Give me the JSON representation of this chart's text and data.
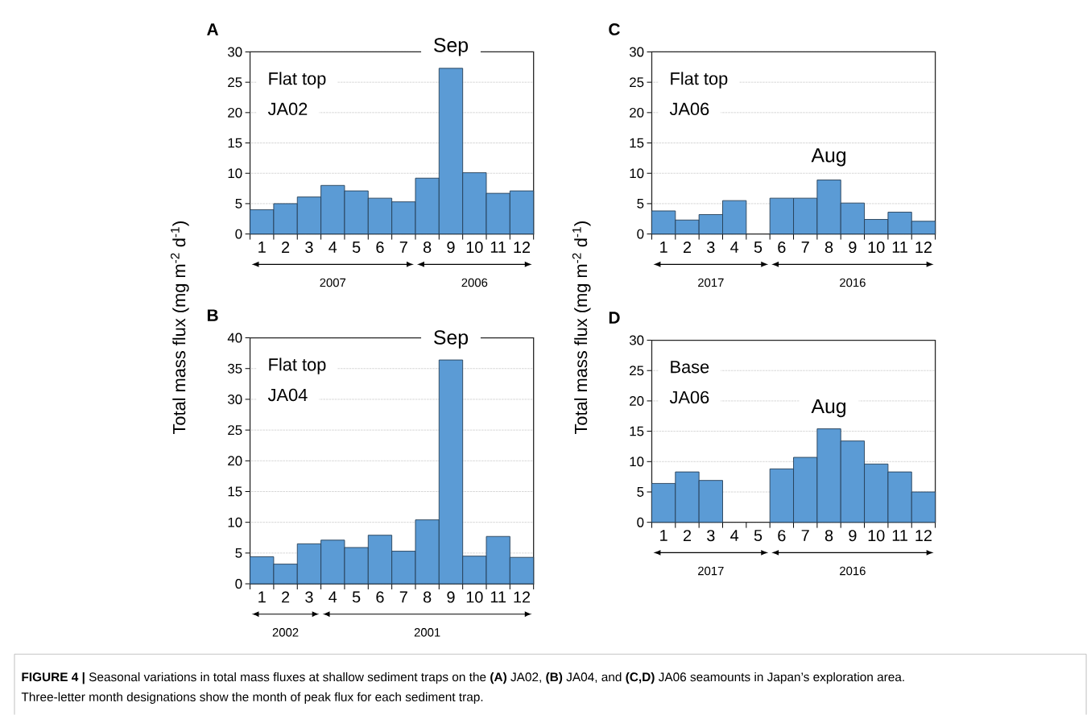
{
  "chart_data": [
    {
      "type": "bar",
      "title": "Flat top",
      "subtitle": "JA02",
      "ylabel": "Total mass flux (mg m$^{-2}$ d$^{-1}$)",
      "categories": [
        "1",
        "2",
        "3",
        "4",
        "5",
        "6",
        "7",
        "8",
        "9",
        "10",
        "11",
        "12"
      ],
      "values": [
        4.0,
        5.0,
        6.1,
        8.0,
        7.1,
        5.9,
        5.3,
        9.2,
        27.3,
        10.1,
        6.7,
        7.1
      ],
      "color": "#5b9bd5",
      "ylim": [
        0,
        30
      ],
      "yticks": [
        0,
        5,
        10,
        15,
        20,
        25,
        30
      ],
      "grid": "y",
      "annotations": [
        "A",
        "**FIGURE 4 |** Seasonal variations in total mass fluxes at shallow sediment traps on the **(A)** JA02, **(B)** JA04, and **(C,D)** JA06 seamounts in Japan’s exploration area.",
        "Three-letter month designations show the month of peak flux for each sediment trap.",
        "Sep",
        "2007",
        "2006"
      ]
    },
    {
      "type": "bar",
      "title": "Flat top",
      "subtitle": "JA04",
      "categories": [
        "1",
        "2",
        "3",
        "4",
        "5",
        "6",
        "7",
        "8",
        "9",
        "10",
        "11",
        "12"
      ],
      "values": [
        4.4,
        3.2,
        6.5,
        7.1,
        5.9,
        7.9,
        5.3,
        10.4,
        36.4,
        4.5,
        7.7,
        4.3
      ],
      "color": "#5b9bd5",
      "ylim": [
        0,
        40
      ],
      "yticks": [
        0,
        5,
        10,
        15,
        20,
        25,
        30,
        35,
        40
      ],
      "grid": "y",
      "annotations": [
        "B",
        "Sep",
        "2002",
        "2001"
      ]
    },
    {
      "type": "bar",
      "title": "Flat top",
      "subtitle": "JA06",
      "ylabel": "Total mass flux (mg m$^{-2}$ d$^{-1}$)",
      "categories": [
        "1",
        "2",
        "3",
        "4",
        "5",
        "6",
        "7",
        "8",
        "9",
        "10",
        "11",
        "12"
      ],
      "values": [
        3.8,
        2.3,
        3.2,
        5.5,
        null,
        5.9,
        5.9,
        8.9,
        5.1,
        2.4,
        3.6,
        2.1
      ],
      "color": "#5b9bd5",
      "ylim": [
        0,
        30
      ],
      "yticks": [
        0,
        5,
        10,
        15,
        20,
        25,
        30
      ],
      "grid": "y",
      "annotations": [
        "C",
        "Aug",
        "2017",
        "2016"
      ]
    },
    {
      "type": "bar",
      "title": "Base",
      "subtitle": "JA06",
      "categories": [
        "1",
        "2",
        "3",
        "4",
        "5",
        "6",
        "7",
        "8",
        "9",
        "10",
        "11",
        "12"
      ],
      "values": [
        6.4,
        8.3,
        6.9,
        null,
        null,
        8.8,
        10.7,
        15.4,
        13.4,
        9.6,
        8.3,
        5.0
      ],
      "color": "#5b9bd5",
      "ylim": [
        0,
        30
      ],
      "yticks": [
        0,
        5,
        10,
        15,
        20,
        25,
        30
      ],
      "grid": "y",
      "annotations": [
        "D",
        "Aug",
        "2017",
        "2016"
      ]
    }
  ]
}
